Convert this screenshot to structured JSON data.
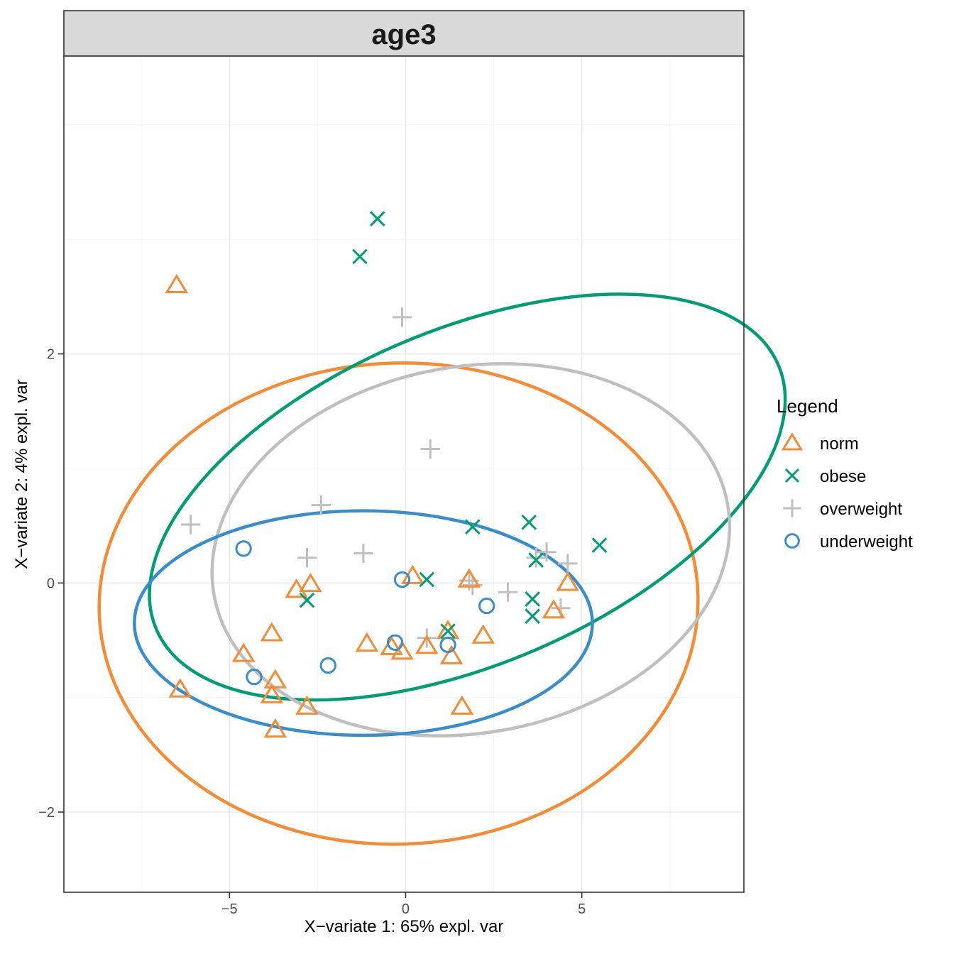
{
  "chart_data": {
    "type": "scatter",
    "title": "age3",
    "xlabel": "X−variate 1: 65% expl. var",
    "ylabel": "X−variate 2: 4% expl. var",
    "xlim": [
      -9.7,
      9.6
    ],
    "ylim": [
      -2.7,
      4.6
    ],
    "xticks": [
      -5,
      0,
      5
    ],
    "xtick_labels": [
      "−5",
      "0",
      "5"
    ],
    "yticks": [
      -2,
      0,
      2
    ],
    "ytick_labels": [
      "−2",
      "0",
      "2"
    ],
    "grid": true,
    "legend": {
      "title": "Legend",
      "position": "right"
    },
    "series": [
      {
        "name": "norm",
        "color": "#F68B33",
        "marker": "triangle",
        "points": [
          [
            -6.5,
            2.6
          ],
          [
            -6.4,
            -0.93
          ],
          [
            -4.6,
            -0.62
          ],
          [
            -3.8,
            -0.44
          ],
          [
            -3.7,
            -0.85
          ],
          [
            -3.8,
            -0.98
          ],
          [
            -3.7,
            -1.28
          ],
          [
            -3.1,
            -0.06
          ],
          [
            -2.7,
            -0.01
          ],
          [
            -2.8,
            -1.08
          ],
          [
            -1.1,
            -0.53
          ],
          [
            -0.4,
            -0.56
          ],
          [
            -0.1,
            -0.6
          ],
          [
            0.2,
            0.06
          ],
          [
            0.6,
            -0.55
          ],
          [
            1.2,
            -0.42
          ],
          [
            1.3,
            -0.64
          ],
          [
            1.6,
            -1.08
          ],
          [
            1.8,
            0.03
          ],
          [
            2.2,
            -0.46
          ],
          [
            4.2,
            -0.24
          ],
          [
            4.6,
            0.0
          ]
        ]
      },
      {
        "name": "obese",
        "color": "#009E73",
        "marker": "x",
        "points": [
          [
            -0.8,
            3.18
          ],
          [
            -1.3,
            2.85
          ],
          [
            -2.8,
            -0.15
          ],
          [
            0.6,
            0.03
          ],
          [
            1.2,
            -0.42
          ],
          [
            1.9,
            0.49
          ],
          [
            3.5,
            0.53
          ],
          [
            3.7,
            0.2
          ],
          [
            3.6,
            -0.14
          ],
          [
            3.6,
            -0.29
          ],
          [
            5.5,
            0.33
          ]
        ]
      },
      {
        "name": "overweight",
        "color": "#BFBFBF",
        "marker": "plus",
        "points": [
          [
            -0.1,
            2.32
          ],
          [
            0.7,
            1.17
          ],
          [
            -2.4,
            0.68
          ],
          [
            -6.1,
            0.51
          ],
          [
            -2.8,
            0.22
          ],
          [
            -1.2,
            0.26
          ],
          [
            1.8,
            0.02
          ],
          [
            1.9,
            -0.02
          ],
          [
            2.9,
            -0.08
          ],
          [
            3.7,
            0.22
          ],
          [
            4.0,
            0.27
          ],
          [
            4.6,
            0.17
          ],
          [
            4.4,
            -0.22
          ],
          [
            0.6,
            -0.48
          ]
        ]
      },
      {
        "name": "underweight",
        "color": "#388ECC",
        "marker": "circle",
        "points": [
          [
            -4.6,
            0.3
          ],
          [
            -4.3,
            -0.82
          ],
          [
            -2.2,
            -0.72
          ],
          [
            -0.1,
            0.03
          ],
          [
            -0.3,
            -0.52
          ],
          [
            1.2,
            -0.54
          ],
          [
            2.3,
            -0.2
          ]
        ]
      }
    ],
    "ellipses": [
      {
        "series": "norm",
        "color": "#F68B33",
        "cx": -0.2,
        "cy": -0.18,
        "rx": 8.5,
        "ry": 2.1,
        "angle_deg": -2
      },
      {
        "series": "obese",
        "color": "#009E73",
        "cx": 1.75,
        "cy": 0.75,
        "rx": 4.75,
        "ry": 2.95,
        "angle_deg": -113
      },
      {
        "series": "overweight",
        "color": "#BFBFBF",
        "cx": 1.85,
        "cy": 0.29,
        "rx": 7.4,
        "ry": 1.6,
        "angle_deg": -10
      },
      {
        "series": "underweight",
        "color": "#388ECC",
        "cx": -1.2,
        "cy": -0.35,
        "rx": 6.5,
        "ry": 0.98,
        "angle_deg": 0
      }
    ]
  }
}
